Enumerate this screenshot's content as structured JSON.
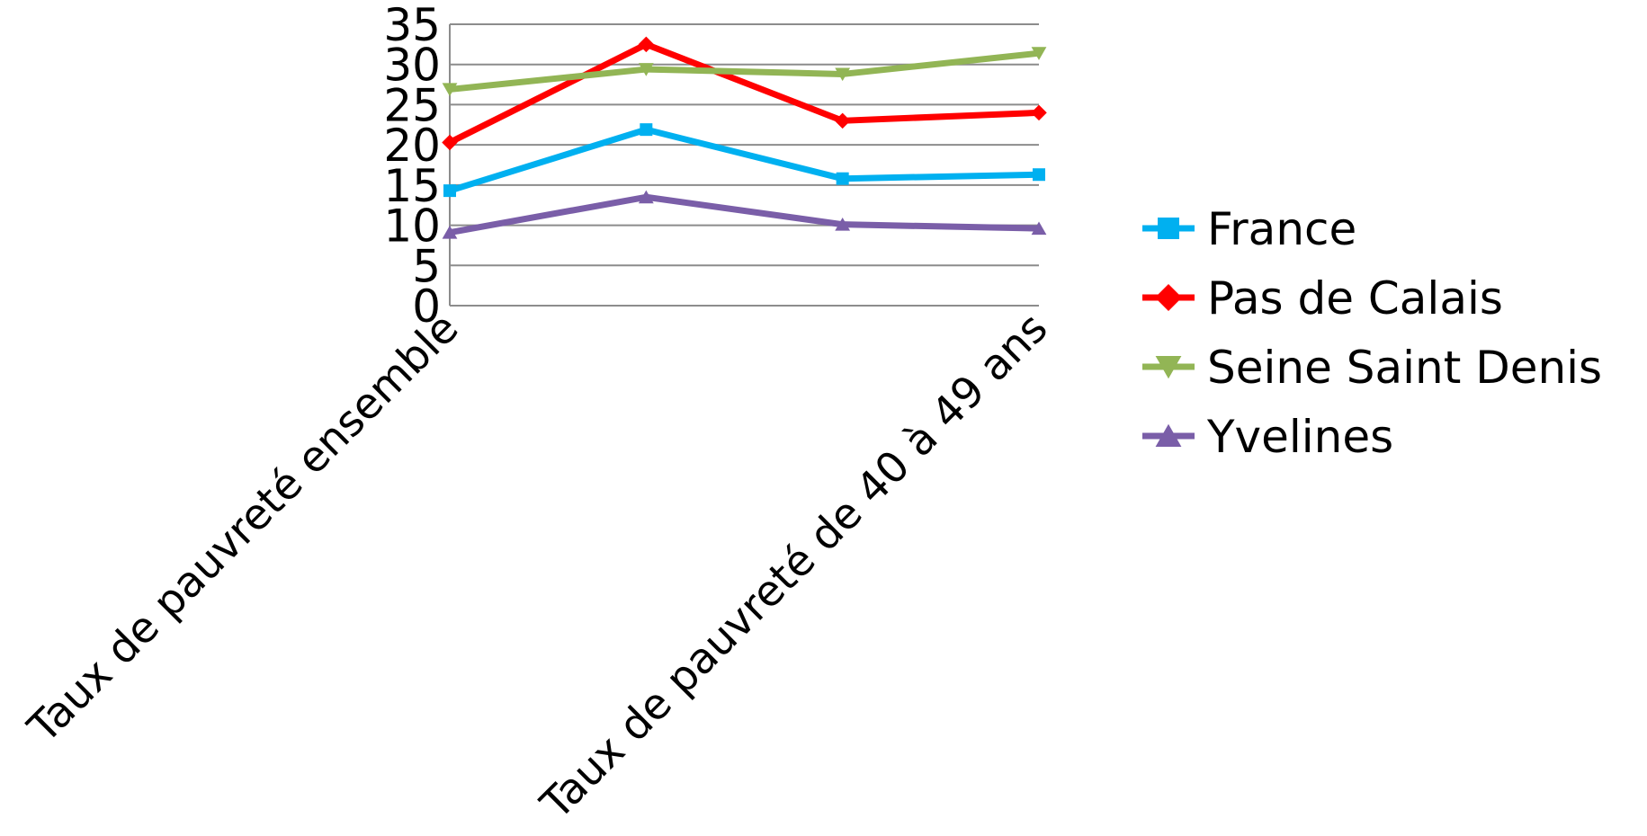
{
  "chart_data": {
    "type": "line",
    "title": "",
    "xlabel": "",
    "ylabel": "",
    "ylim": [
      0,
      35
    ],
    "yticks": [
      0,
      5,
      10,
      15,
      20,
      25,
      30,
      35
    ],
    "grid": true,
    "legend_position": "right",
    "x_labels_shown": [
      "Taux de pauvreté ensemble",
      "Taux de pauvreté de 40 à 49 ans"
    ],
    "series": [
      {
        "name": "France",
        "values": [
          14.3,
          21.9,
          15.8,
          16.3
        ],
        "color": "#00b0f0",
        "marker": "square"
      },
      {
        "name": "Pas de Calais",
        "values": [
          20.3,
          32.5,
          23.0,
          24.0
        ],
        "color": "#ff0000",
        "marker": "diamond"
      },
      {
        "name": "Seine Saint Denis",
        "values": [
          26.9,
          29.4,
          28.8,
          31.4
        ],
        "color": "#92b555",
        "marker": "triangle-down"
      },
      {
        "name": "Yvelines",
        "values": [
          9.1,
          13.5,
          10.1,
          9.6
        ],
        "color": "#7a5ea8",
        "marker": "triangle-up"
      }
    ]
  }
}
